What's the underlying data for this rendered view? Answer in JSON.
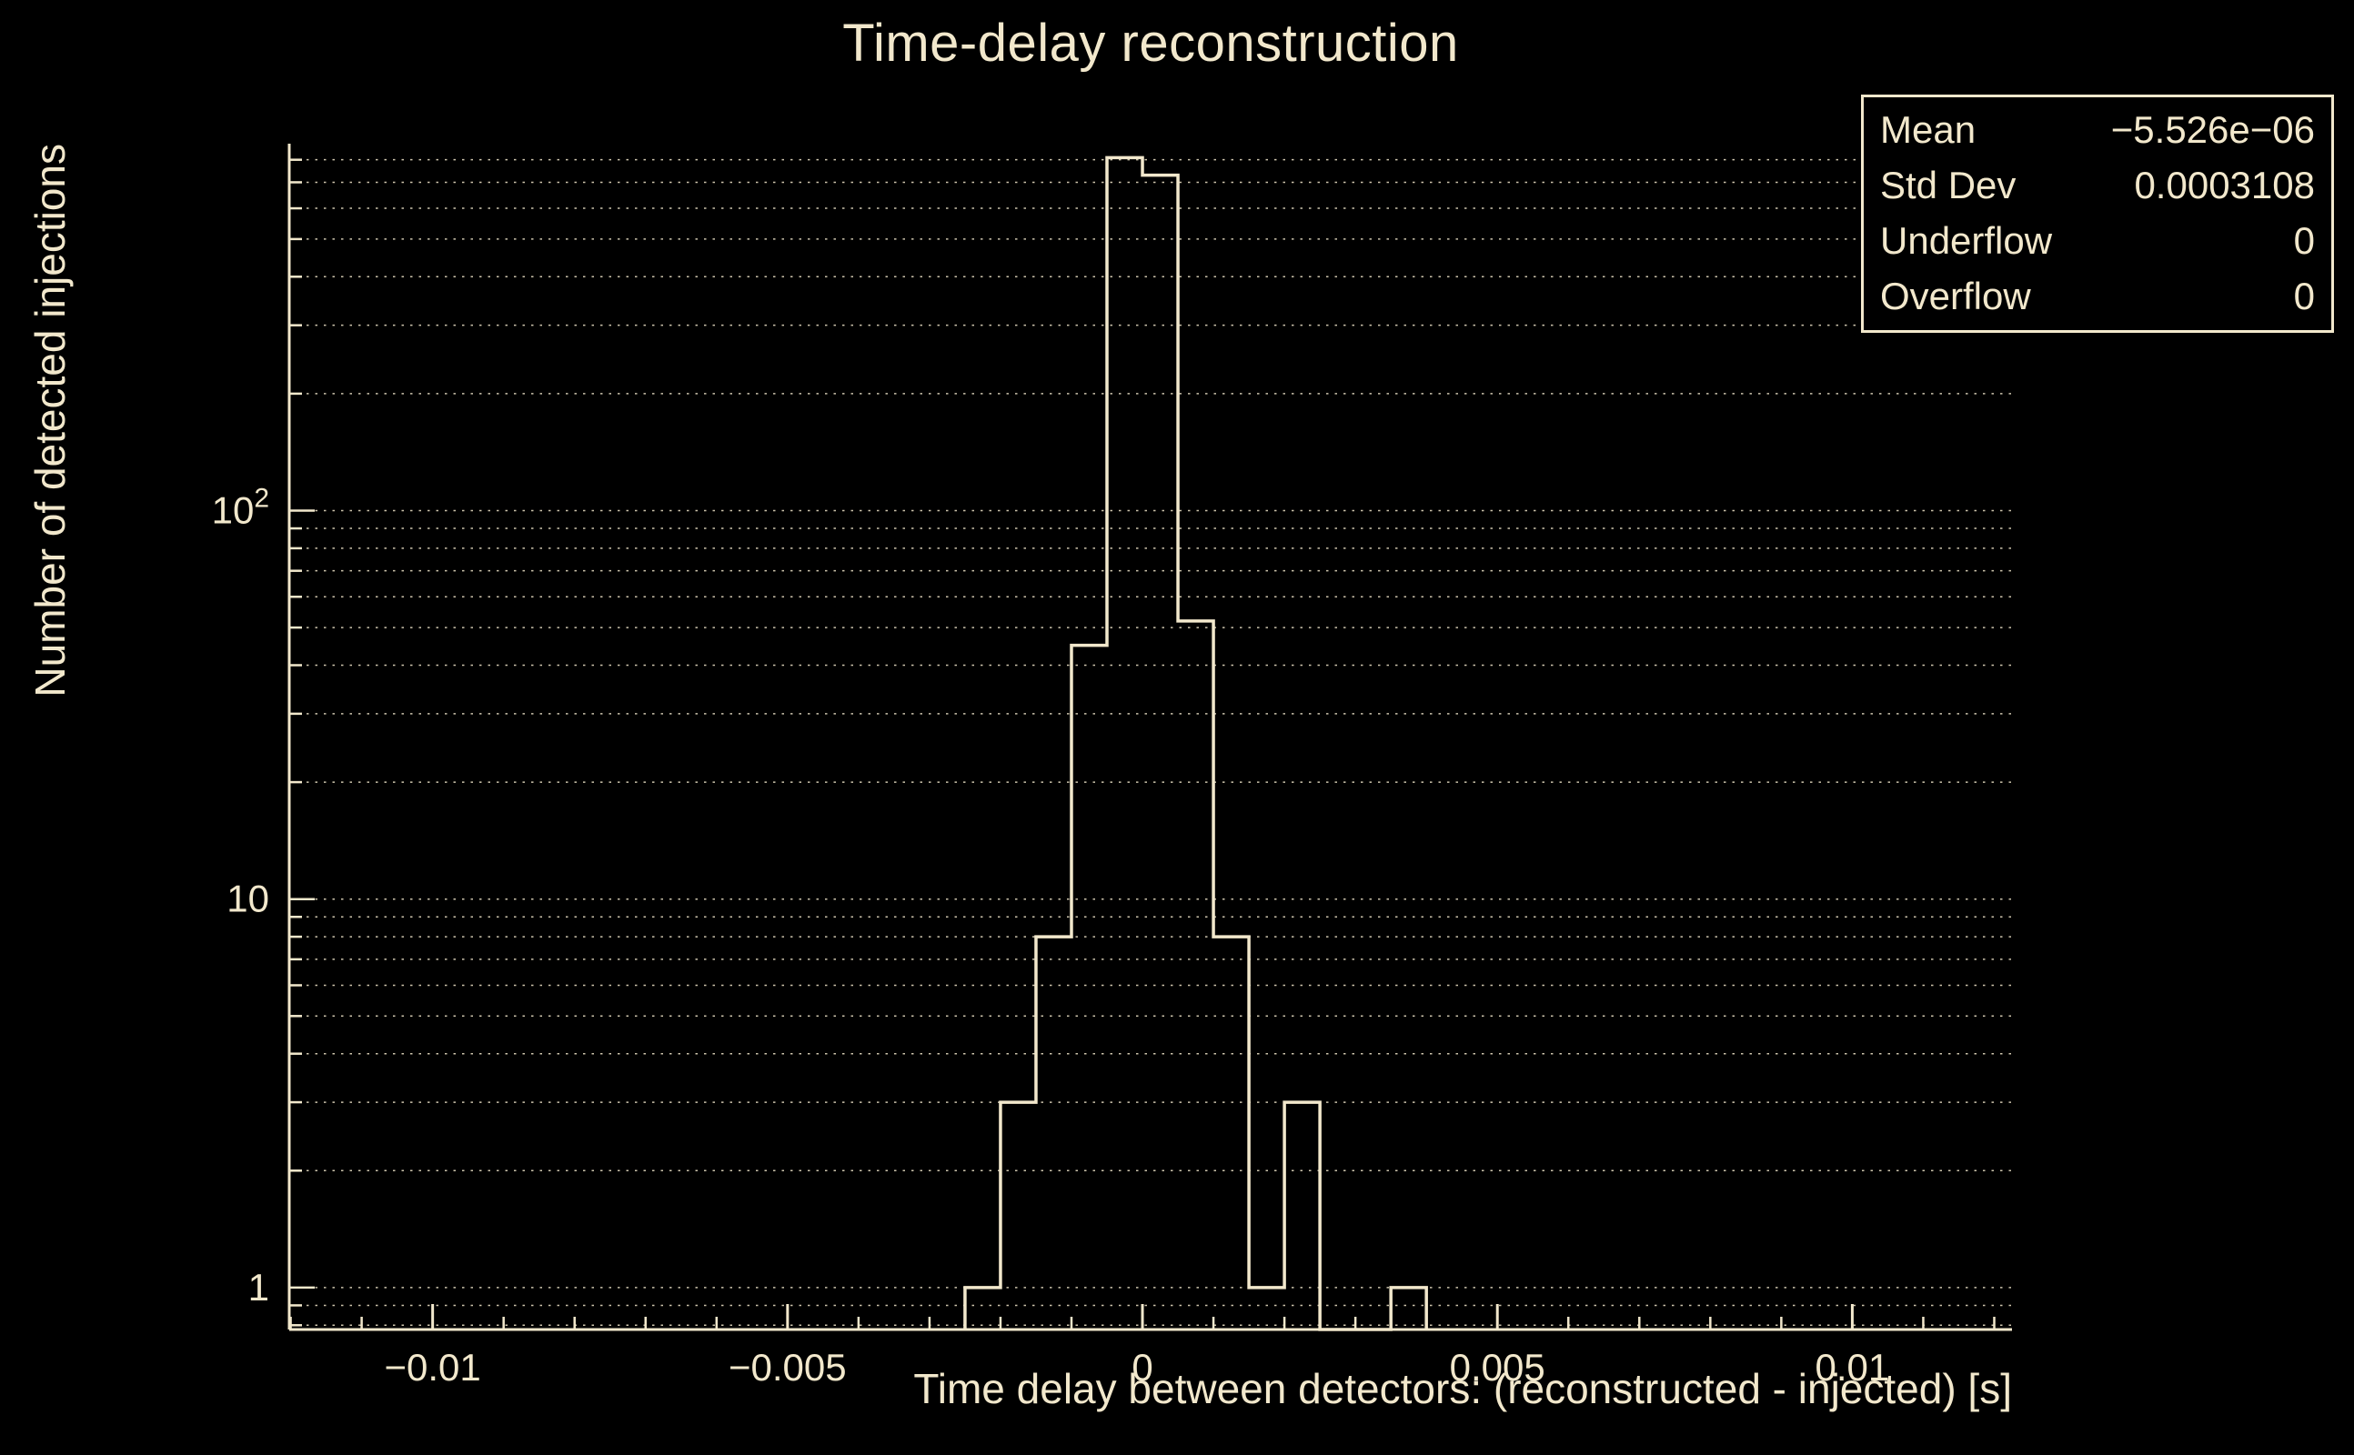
{
  "colors": {
    "background": "#000000",
    "foreground": "#f2e8cc"
  },
  "stats_box": {
    "rows": [
      {
        "label": "Mean",
        "value": "−5.526e−06"
      },
      {
        "label": "Std Dev",
        "value": "0.0003108"
      },
      {
        "label": "Underflow",
        "value": "0"
      },
      {
        "label": "Overflow",
        "value": "0"
      }
    ]
  },
  "chart_data": {
    "type": "bar",
    "subtype": "step-histogram",
    "title": "Time-delay reconstruction",
    "xlabel": "Time delay between detectors: (reconstructed - injected) [s]",
    "ylabel": "Number of detected injections",
    "x_range": [
      -0.01202,
      0.01225
    ],
    "y_range": [
      0.78,
      880
    ],
    "y_scale": "log",
    "grid": "horizontal-dotted-log",
    "legend": "none",
    "bin_width": 0.0005,
    "bins": [
      {
        "x0": -0.0025,
        "x1": -0.002,
        "count": 1
      },
      {
        "x0": -0.002,
        "x1": -0.0015,
        "count": 3
      },
      {
        "x0": -0.0015,
        "x1": -0.001,
        "count": 8
      },
      {
        "x0": -0.001,
        "x1": -0.0005,
        "count": 45
      },
      {
        "x0": -0.0005,
        "x1": 0.0,
        "count": 810
      },
      {
        "x0": 0.0,
        "x1": 0.0005,
        "count": 730
      },
      {
        "x0": 0.0005,
        "x1": 0.001,
        "count": 52
      },
      {
        "x0": 0.001,
        "x1": 0.0015,
        "count": 8
      },
      {
        "x0": 0.0015,
        "x1": 0.002,
        "count": 1
      },
      {
        "x0": 0.002,
        "x1": 0.0025,
        "count": 3
      },
      {
        "x0": 0.0035,
        "x1": 0.004,
        "count": 1
      }
    ],
    "x_major_ticks": [
      {
        "v": -0.01,
        "label": "−0.01"
      },
      {
        "v": -0.005,
        "label": "−0.005"
      },
      {
        "v": 0,
        "label": "0"
      },
      {
        "v": 0.005,
        "label": "0.005"
      },
      {
        "v": 0.01,
        "label": "0.01"
      }
    ],
    "x_minor_step": 0.001,
    "y_major_ticks": [
      {
        "v": 1,
        "label": "1"
      },
      {
        "v": 10,
        "label": "10"
      },
      {
        "v": 100,
        "label": "10",
        "exp": "2"
      }
    ]
  }
}
